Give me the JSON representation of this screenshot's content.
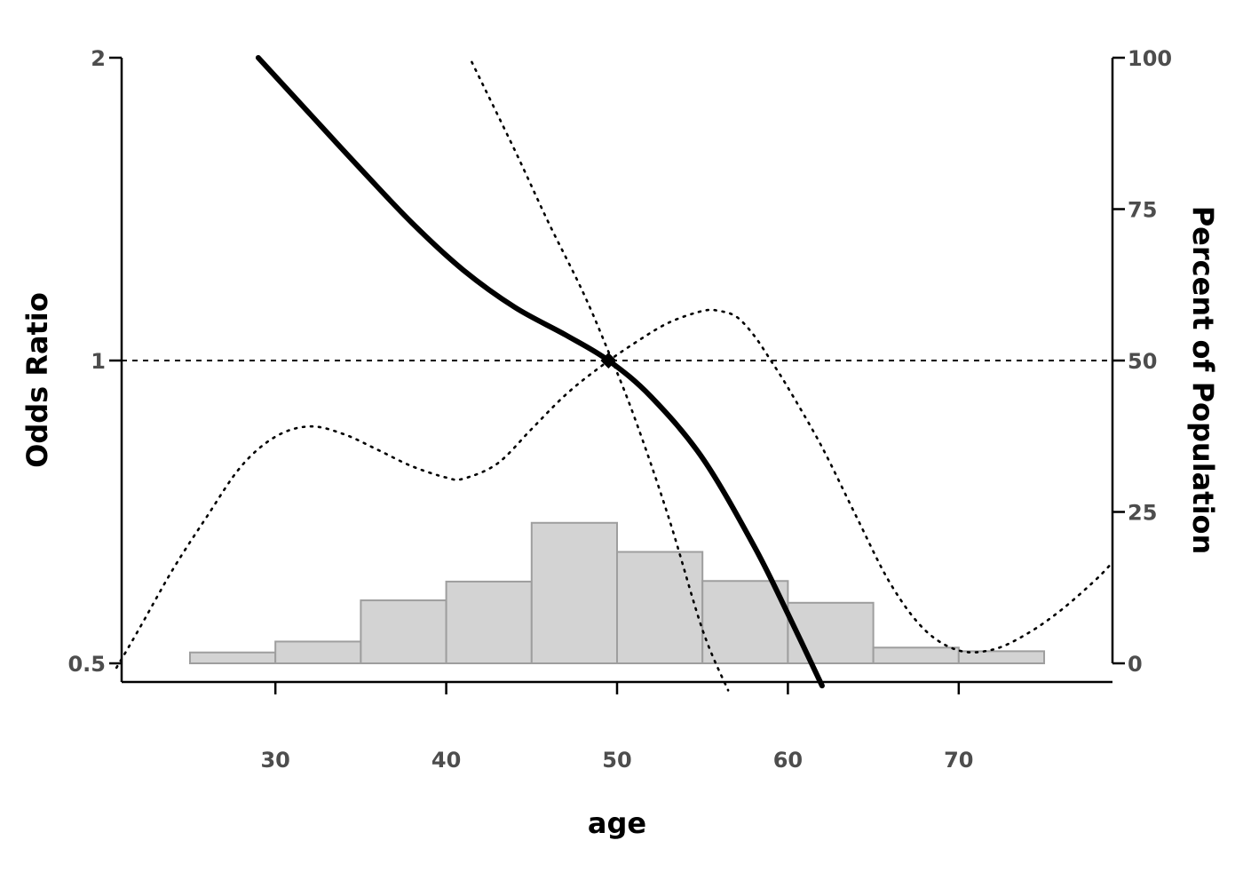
{
  "chart_data": {
    "type": "line",
    "xlabel": "age",
    "ylabel": "Odds Ratio",
    "y2label": "Percent of Population",
    "x_ticks": [
      30,
      40,
      50,
      60,
      70
    ],
    "y_ticks": [
      0.5,
      1,
      2
    ],
    "y_tick_labels": [
      "0.5",
      "1",
      "2"
    ],
    "y2_ticks": [
      0,
      25,
      50,
      75,
      100
    ],
    "xlim": [
      21,
      79
    ],
    "ylim": [
      0.5,
      2
    ],
    "y_scale": "log",
    "y2lim": [
      0,
      100
    ],
    "reference_line": 1,
    "reference_point": {
      "x": 49.5,
      "y": 1.0
    },
    "histogram": {
      "bin_edges": [
        25,
        30,
        35,
        40,
        45,
        50,
        55,
        60,
        65,
        70,
        75
      ],
      "percent": [
        1.8,
        3.6,
        10.4,
        13.5,
        23.2,
        18.4,
        13.6,
        10.0,
        2.6,
        2.0
      ]
    },
    "series": [
      {
        "line": "solid",
        "x": [
          29,
          32,
          35,
          38,
          41,
          44,
          47,
          49.5,
          52,
          55,
          58,
          60,
          62
        ],
        "y": [
          2.0,
          1.76,
          1.55,
          1.37,
          1.23,
          1.13,
          1.06,
          1.0,
          0.92,
          0.8,
          0.655,
          0.56,
          0.475
        ]
      },
      {
        "line": "dotted",
        "x": [
          41.5,
          44,
          46,
          48,
          49.5,
          51,
          53,
          55,
          56.5
        ],
        "y": [
          1.98,
          1.62,
          1.37,
          1.17,
          1.02,
          0.88,
          0.7,
          0.54,
          0.47
        ]
      },
      {
        "line": "dotted",
        "x": [
          20.7,
          22,
          24,
          26,
          28,
          30,
          32,
          34,
          36,
          38,
          40,
          41,
          43,
          45,
          47,
          49,
          51,
          53,
          55,
          56,
          57,
          58,
          59,
          60,
          62,
          64,
          66,
          68,
          70,
          72,
          74,
          76,
          78,
          79
        ],
        "y": [
          0.495,
          0.54,
          0.62,
          0.7,
          0.785,
          0.84,
          0.86,
          0.845,
          0.815,
          0.785,
          0.765,
          0.763,
          0.79,
          0.855,
          0.925,
          0.985,
          1.04,
          1.09,
          1.12,
          1.12,
          1.105,
          1.06,
          1.0,
          0.94,
          0.82,
          0.7,
          0.6,
          0.54,
          0.515,
          0.516,
          0.535,
          0.565,
          0.605,
          0.63
        ]
      }
    ]
  }
}
